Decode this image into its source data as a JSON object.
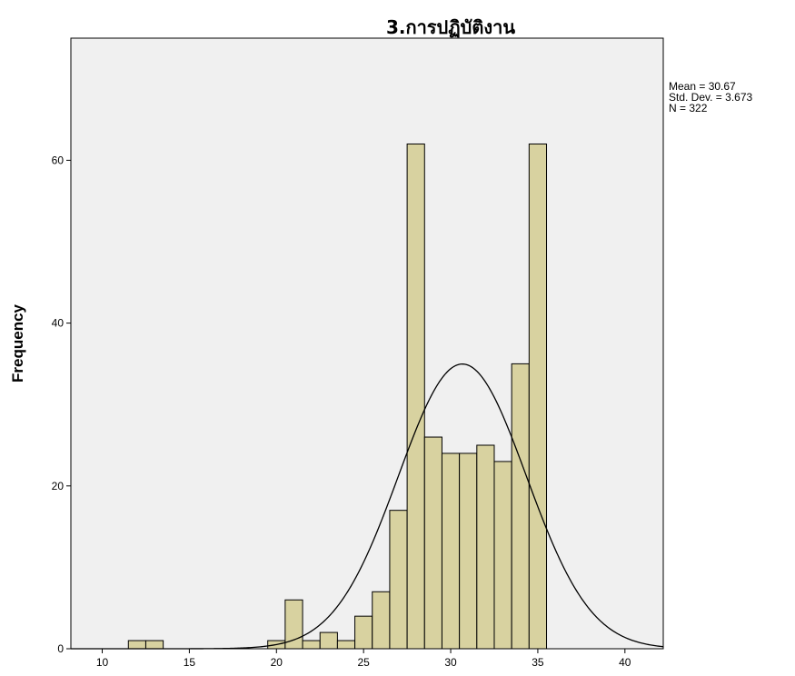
{
  "chart_data": {
    "type": "bar",
    "title": "3.การปฏิบัติงาน",
    "xlabel": "",
    "ylabel": "Frequency",
    "xlim": [
      8.2,
      42.2
    ],
    "ylim": [
      0,
      75
    ],
    "x_ticks": [
      10,
      15,
      20,
      25,
      30,
      35,
      40
    ],
    "y_ticks": [
      0,
      20,
      40,
      60
    ],
    "bin_width": 1,
    "bins": [
      {
        "x": 12,
        "value": 1
      },
      {
        "x": 13,
        "value": 1
      },
      {
        "x": 20,
        "value": 1
      },
      {
        "x": 21,
        "value": 6
      },
      {
        "x": 22,
        "value": 1
      },
      {
        "x": 23,
        "value": 2
      },
      {
        "x": 24,
        "value": 1
      },
      {
        "x": 25,
        "value": 4
      },
      {
        "x": 26,
        "value": 7
      },
      {
        "x": 27,
        "value": 17
      },
      {
        "x": 28,
        "value": 62
      },
      {
        "x": 29,
        "value": 26
      },
      {
        "x": 30,
        "value": 24
      },
      {
        "x": 31,
        "value": 24
      },
      {
        "x": 32,
        "value": 25
      },
      {
        "x": 33,
        "value": 23
      },
      {
        "x": 34,
        "value": 35
      },
      {
        "x": 35,
        "value": 62
      }
    ],
    "normal_curve": {
      "mean": 30.67,
      "sd": 3.673,
      "n": 322
    },
    "stats_text": [
      "Mean = 30.67",
      "Std. Dev. = 3.673",
      "N = 322"
    ],
    "colors": {
      "plot_bg": "#f0f0f0",
      "bar_fill": "#d8d2a0",
      "bar_stroke": "#000000",
      "curve": "#000000"
    },
    "grid": false,
    "legend": "none"
  }
}
